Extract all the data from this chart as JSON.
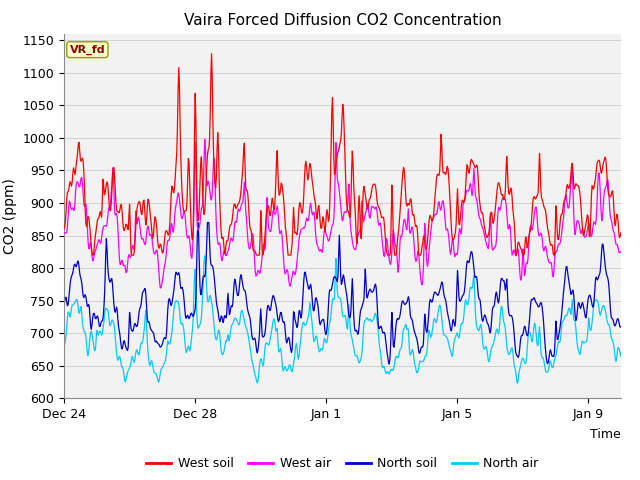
{
  "title": "Vaira Forced Diffusion CO2 Concentration",
  "xlabel": "Time",
  "ylabel": "CO2 (ppm)",
  "ylim": [
    600,
    1160
  ],
  "yticks": [
    600,
    650,
    700,
    750,
    800,
    850,
    900,
    950,
    1000,
    1050,
    1100,
    1150
  ],
  "xtick_labels": [
    "Dec 24",
    "Dec 28",
    "Jan 1",
    "Jan 5",
    "Jan 9"
  ],
  "xtick_positions": [
    0,
    4,
    8,
    12,
    16
  ],
  "colors": {
    "west_soil": "#ff0000",
    "west_air": "#ff00ff",
    "north_soil": "#0000cc",
    "north_air": "#00ccff"
  },
  "legend_labels": [
    "West soil",
    "West air",
    "North soil",
    "North air"
  ],
  "vr_fd_label": "VR_fd",
  "n_days": 17,
  "seed": 12345
}
